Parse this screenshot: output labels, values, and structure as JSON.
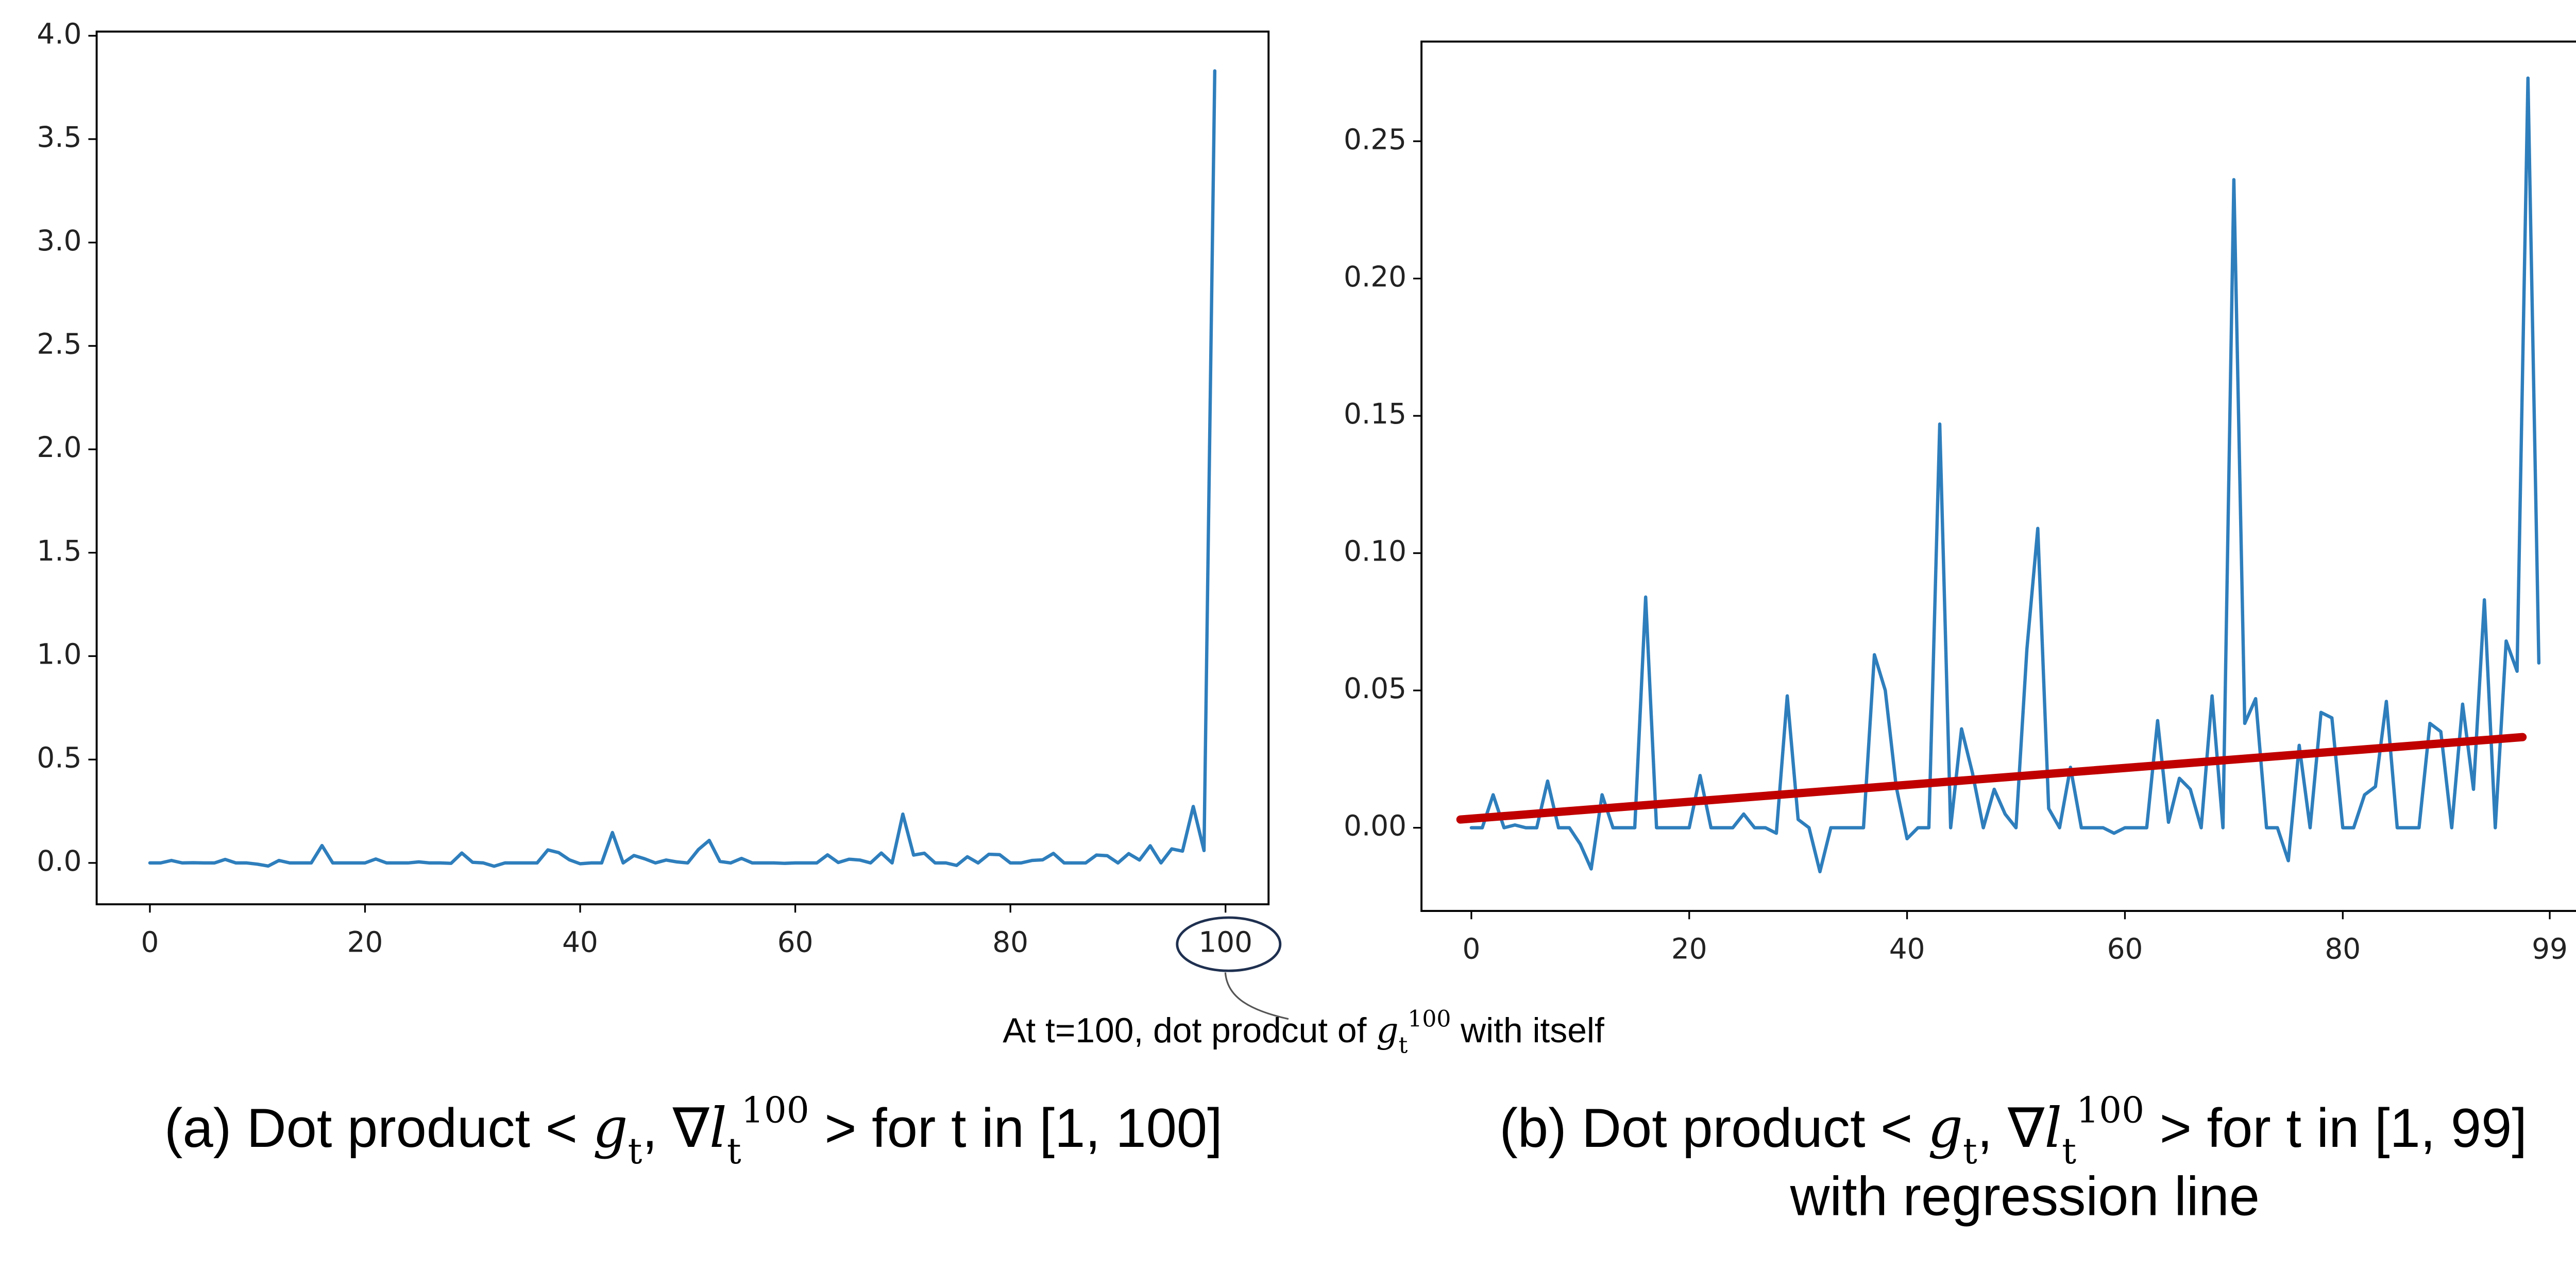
{
  "chart_data": [
    {
      "type": "line",
      "x": [
        0,
        1,
        2,
        3,
        4,
        5,
        6,
        7,
        8,
        9,
        10,
        11,
        12,
        13,
        14,
        15,
        16,
        17,
        18,
        19,
        20,
        21,
        22,
        23,
        24,
        25,
        26,
        27,
        28,
        29,
        30,
        31,
        32,
        33,
        34,
        35,
        36,
        37,
        38,
        39,
        40,
        41,
        42,
        43,
        44,
        45,
        46,
        47,
        48,
        49,
        50,
        51,
        52,
        53,
        54,
        55,
        56,
        57,
        58,
        59,
        60,
        61,
        62,
        63,
        64,
        65,
        66,
        67,
        68,
        69,
        70,
        71,
        72,
        73,
        74,
        75,
        76,
        77,
        78,
        79,
        80,
        81,
        82,
        83,
        84,
        85,
        86,
        87,
        88,
        89,
        90,
        91,
        92,
        93,
        94,
        95,
        96,
        97,
        98,
        99
      ],
      "series": [
        {
          "color": "#2e7ebc",
          "values": [
            0,
            0,
            0.012,
            0,
            0.001,
            0,
            0,
            0.017,
            0,
            0,
            -0.006,
            -0.015,
            0.012,
            0,
            0,
            0,
            0.084,
            0,
            0,
            0,
            0,
            0.019,
            0,
            0,
            0,
            0.005,
            0,
            0,
            -0.002,
            0.048,
            0.003,
            0,
            -0.016,
            0,
            0,
            0,
            0,
            0.063,
            0.05,
            0.015,
            -0.004,
            0,
            0,
            0.147,
            0,
            0.036,
            0.02,
            0,
            0.014,
            0.005,
            0,
            0.065,
            0.109,
            0.007,
            0,
            0.022,
            0,
            0,
            0,
            -0.002,
            0,
            0,
            0,
            0.039,
            0.002,
            0.018,
            0.014,
            0,
            0.048,
            0,
            0.236,
            0.038,
            0.047,
            0,
            0,
            -0.012,
            0.03,
            0,
            0.042,
            0.04,
            0,
            0,
            0.012,
            0.015,
            0.046,
            0,
            0,
            0,
            0.038,
            0.035,
            0,
            0.045,
            0.014,
            0.083,
            0,
            0.068,
            0.057,
            0.273,
            0.06,
            3.83
          ]
        }
      ],
      "xlim": [
        -4.95,
        104.0
      ],
      "ylim": [
        -0.2,
        4.02
      ],
      "xticks": [
        0,
        20,
        40,
        60,
        80,
        100
      ],
      "yticks": [
        {
          "value": 0,
          "label": "0.0"
        },
        0.5,
        {
          "value": 1,
          "label": "1.0"
        },
        1.5,
        {
          "value": 2,
          "label": "2.0"
        },
        2.5,
        {
          "value": 3,
          "label": "3.0"
        },
        3.5,
        {
          "value": 4,
          "label": "4.0"
        }
      ],
      "caption": [
        "(a) Dot product < ",
        "g",
        "t",
        ", ∇",
        "l",
        "t",
        "100",
        " >  for t in [1, 100]"
      ],
      "annotation": [
        "At t=100, dot prodcut of ",
        "g",
        "t",
        "100",
        " with  itself"
      ]
    },
    {
      "type": "line",
      "x": [
        0,
        1,
        2,
        3,
        4,
        5,
        6,
        7,
        8,
        9,
        10,
        11,
        12,
        13,
        14,
        15,
        16,
        17,
        18,
        19,
        20,
        21,
        22,
        23,
        24,
        25,
        26,
        27,
        28,
        29,
        30,
        31,
        32,
        33,
        34,
        35,
        36,
        37,
        38,
        39,
        40,
        41,
        42,
        43,
        44,
        45,
        46,
        47,
        48,
        49,
        50,
        51,
        52,
        53,
        54,
        55,
        56,
        57,
        58,
        59,
        60,
        61,
        62,
        63,
        64,
        65,
        66,
        67,
        68,
        69,
        70,
        71,
        72,
        73,
        74,
        75,
        76,
        77,
        78,
        79,
        80,
        81,
        82,
        83,
        84,
        85,
        86,
        87,
        88,
        89,
        90,
        91,
        92,
        93,
        94,
        95,
        96,
        97,
        98
      ],
      "series": [
        {
          "color": "#2e7ebc",
          "values": [
            0,
            0,
            0.012,
            0,
            0.001,
            0,
            0,
            0.017,
            0,
            0,
            -0.006,
            -0.015,
            0.012,
            0,
            0,
            0,
            0.084,
            0,
            0,
            0,
            0,
            0.019,
            0,
            0,
            0,
            0.005,
            0,
            0,
            -0.002,
            0.048,
            0.003,
            0,
            -0.016,
            0,
            0,
            0,
            0,
            0.063,
            0.05,
            0.015,
            -0.004,
            0,
            0,
            0.147,
            0,
            0.036,
            0.02,
            0,
            0.014,
            0.005,
            0,
            0.065,
            0.109,
            0.007,
            0,
            0.022,
            0,
            0,
            0,
            -0.002,
            0,
            0,
            0,
            0.039,
            0.002,
            0.018,
            0.014,
            0,
            0.048,
            0,
            0.236,
            0.038,
            0.047,
            0,
            0,
            -0.012,
            0.03,
            0,
            0.042,
            0.04,
            0,
            0,
            0.012,
            0.015,
            0.046,
            0,
            0,
            0,
            0.038,
            0.035,
            0,
            0.045,
            0.014,
            0.083,
            0,
            0.068,
            0.057,
            0.273,
            0.06
          ]
        },
        {
          "color": "#c00000",
          "x": [
            -1,
            96.5
          ],
          "values": [
            0.003,
            0.033
          ]
        }
      ],
      "xlim": [
        -4.58,
        102.7
      ],
      "ylim": [
        -0.0303,
        0.2863
      ],
      "xticks": [
        0,
        20,
        40,
        60,
        80,
        99
      ],
      "yticks": [
        {
          "value": 0,
          "label": "0.00"
        },
        0.05,
        {
          "value": 0.1,
          "label": "0.10"
        },
        0.15,
        {
          "value": 0.2,
          "label": "0.20"
        },
        0.25
      ],
      "caption": [
        "(b) Dot product < ",
        "g",
        "t",
        ", ∇",
        "l",
        "t",
        "100",
        " >  for t in [1, 99]",
        "with regression line"
      ]
    }
  ]
}
